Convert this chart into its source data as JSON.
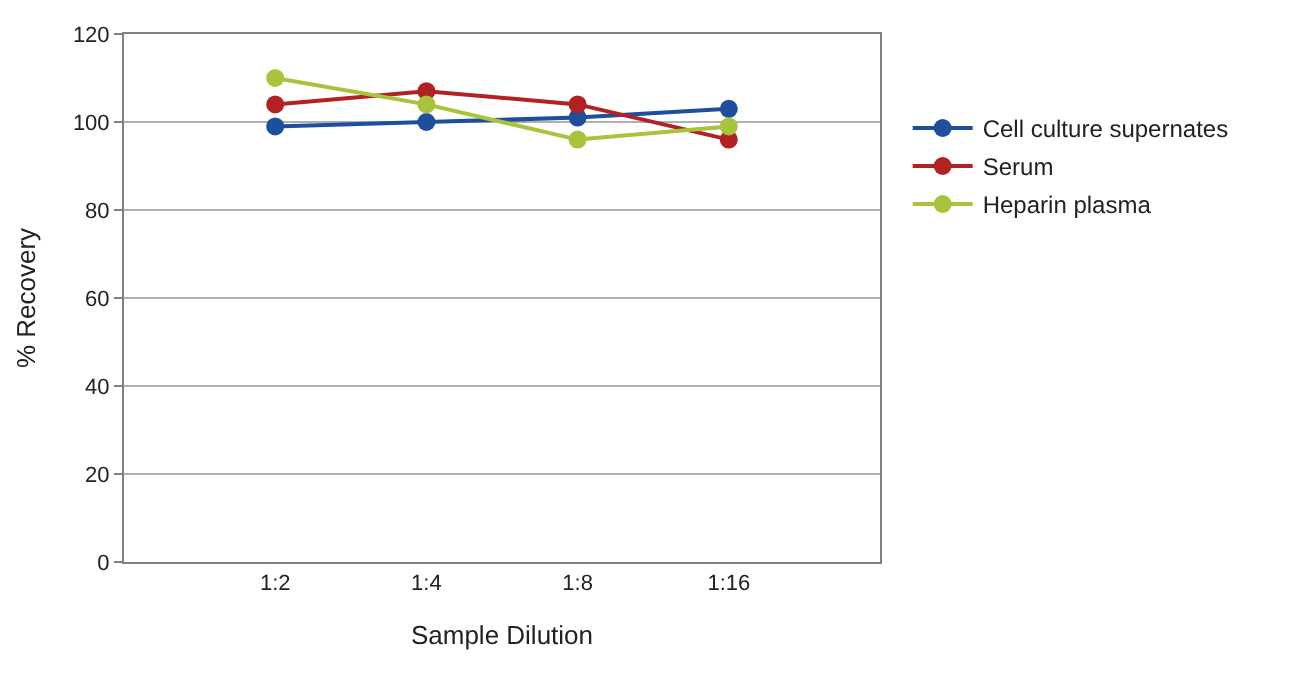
{
  "chart_data": {
    "type": "line",
    "xlabel": "Sample Dilution",
    "ylabel": "% Recovery",
    "categories": [
      "1:2",
      "1:4",
      "1:8",
      "1:16"
    ],
    "series": [
      {
        "name": "Cell culture supernates",
        "color": "#1f4e9c",
        "values": [
          99,
          100,
          101,
          103
        ]
      },
      {
        "name": "Serum",
        "color": "#b22222",
        "values": [
          104,
          107,
          104,
          96
        ]
      },
      {
        "name": "Heparin plasma",
        "color": "#a8c43c",
        "values": [
          110,
          104,
          96,
          99
        ]
      }
    ],
    "ylim": [
      0,
      120
    ],
    "yticks": [
      0,
      20,
      40,
      60,
      80,
      100,
      120
    ],
    "grid": "y",
    "legend": "right",
    "marker": "circle",
    "line_style": "solid"
  }
}
